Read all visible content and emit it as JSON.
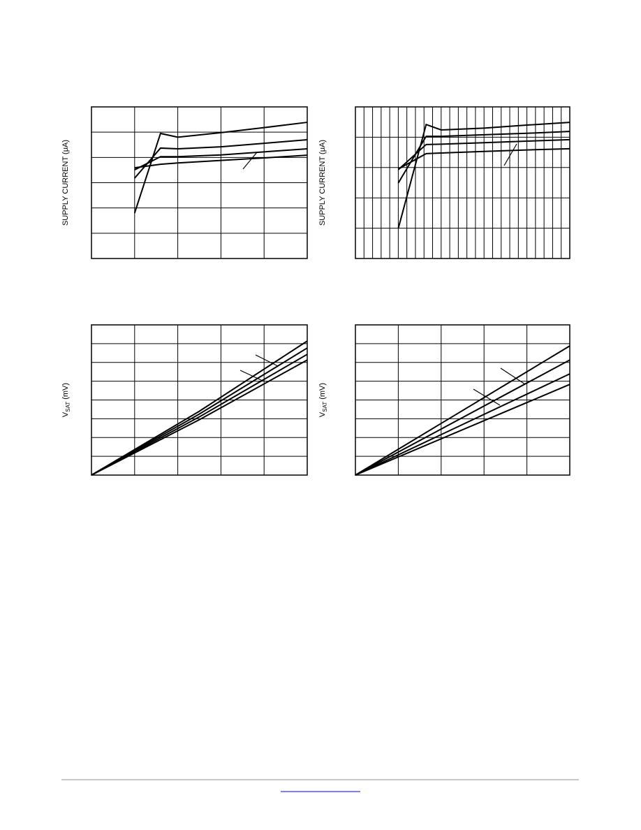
{
  "chart_data": [
    {
      "type": "line",
      "ylabel": "SUPPLY CURRENT (μA)",
      "xlim": [
        0,
        5
      ],
      "ylim": [
        0,
        6
      ],
      "x": [
        1,
        1.6,
        2,
        3,
        4,
        5
      ],
      "series": [
        {
          "color": "#000000",
          "values": [
            1.8,
            4.95,
            4.8,
            4.98,
            5.18,
            5.39
          ]
        },
        {
          "color": "#000000",
          "values": [
            3.18,
            4.37,
            4.34,
            4.42,
            4.56,
            4.7
          ]
        },
        {
          "color": "#000000",
          "values": [
            3.51,
            4.03,
            4.03,
            4.1,
            4.22,
            4.34
          ]
        },
        {
          "color": "#000000",
          "values": [
            3.59,
            3.73,
            3.78,
            3.88,
            3.98,
            4.09
          ]
        }
      ]
    },
    {
      "type": "line",
      "ylabel": "SUPPLY CURRENT (μA)",
      "xlim": [
        0,
        5
      ],
      "ylim": [
        0,
        5
      ],
      "x": [
        1,
        1.65,
        2,
        3,
        4,
        5
      ],
      "series": [
        {
          "color": "#000000",
          "values": [
            0.99,
            4.42,
            4.24,
            4.3,
            4.4,
            4.49
          ]
        },
        {
          "color": "#000000",
          "values": [
            2.49,
            4.03,
            4.03,
            4.08,
            4.13,
            4.19
          ]
        },
        {
          "color": "#000000",
          "values": [
            2.93,
            3.76,
            3.77,
            3.82,
            3.87,
            3.92
          ]
        },
        {
          "color": "#000000",
          "values": [
            2.95,
            3.46,
            3.48,
            3.53,
            3.58,
            3.62
          ]
        }
      ]
    },
    {
      "type": "line",
      "ylabel": "V",
      "ylabel_sub": "SAT",
      "ylabel_unit": "(mV)",
      "xlim": [
        0,
        5
      ],
      "ylim": [
        0,
        8
      ],
      "x": [
        0,
        2.5,
        5
      ],
      "series": [
        {
          "color": "#000000",
          "values": [
            0,
            3.4,
            7.14
          ]
        },
        {
          "color": "#000000",
          "values": [
            0,
            3.25,
            6.77
          ]
        },
        {
          "color": "#000000",
          "values": [
            0,
            3.1,
            6.43
          ]
        },
        {
          "color": "#000000",
          "values": [
            0,
            2.95,
            6.13
          ]
        }
      ]
    },
    {
      "type": "line",
      "ylabel": "V",
      "ylabel_sub": "SAT",
      "ylabel_unit": "(mV)",
      "xlim": [
        0,
        5
      ],
      "ylim": [
        0,
        8
      ],
      "x": [
        0,
        5
      ],
      "series": [
        {
          "color": "#000000",
          "values": [
            0,
            6.88
          ]
        },
        {
          "color": "#000000",
          "values": [
            0,
            6.13
          ]
        },
        {
          "color": "#000000",
          "values": [
            0,
            5.39
          ]
        },
        {
          "color": "#000000",
          "values": [
            0,
            4.83
          ]
        }
      ]
    }
  ]
}
